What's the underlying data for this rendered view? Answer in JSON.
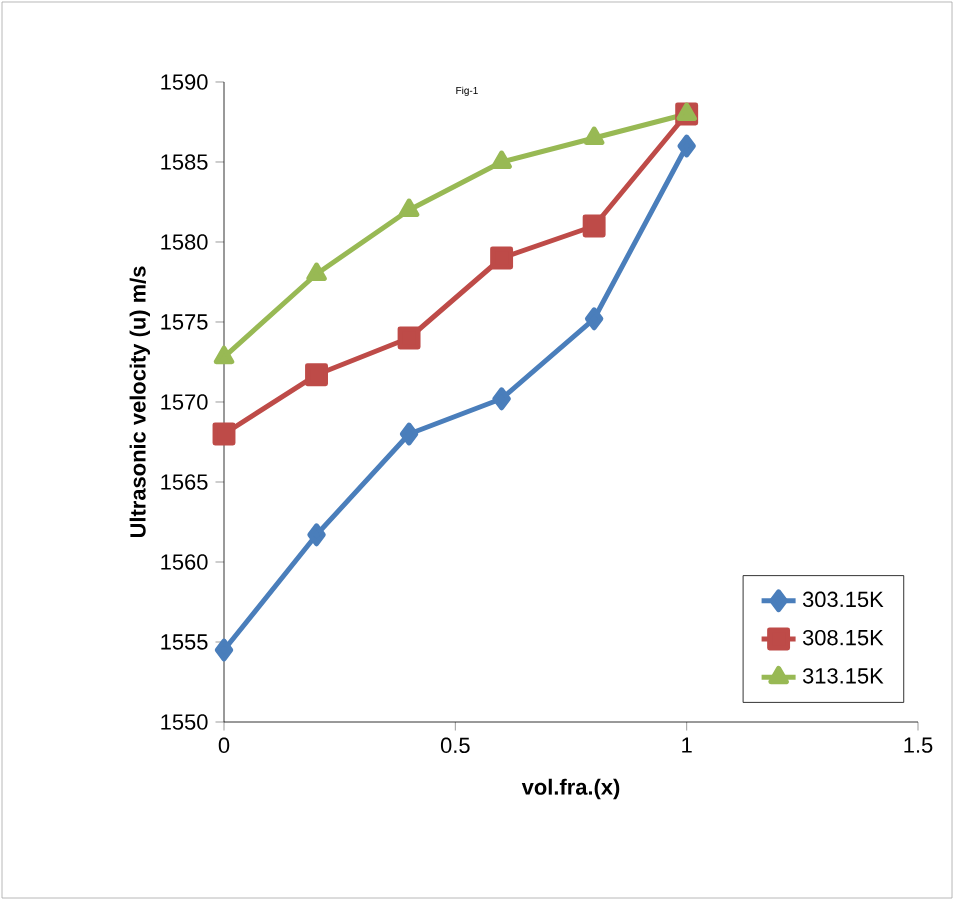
{
  "chart_data": {
    "type": "line",
    "title": "Fig-1",
    "xlabel": "vol.fra.(x)",
    "ylabel": "Ultrasonic velocity (u) m/s",
    "x": [
      0,
      0.2,
      0.4,
      0.6,
      0.8,
      1
    ],
    "series": [
      {
        "name": "303.15K",
        "color": "#4a7ebb",
        "marker": "diamond",
        "values": [
          1554.5,
          1561.7,
          1568,
          1570.2,
          1575.2,
          1586
        ]
      },
      {
        "name": "308.15K",
        "color": "#be4b48",
        "marker": "square",
        "values": [
          1568,
          1571.7,
          1574,
          1579,
          1581,
          1588
        ]
      },
      {
        "name": "313.15K",
        "color": "#98b954",
        "marker": "triangle",
        "values": [
          1572.8,
          1578,
          1582,
          1585,
          1586.5,
          1588
        ]
      }
    ],
    "xlim": [
      0,
      1.5
    ],
    "xticks": [
      0,
      0.5,
      1,
      1.5
    ],
    "ylim": [
      1550,
      1590
    ],
    "yticks": [
      1550,
      1555,
      1560,
      1565,
      1570,
      1575,
      1580,
      1585,
      1590
    ],
    "grid": false,
    "legend": "bottom right",
    "line_style": "solid"
  }
}
